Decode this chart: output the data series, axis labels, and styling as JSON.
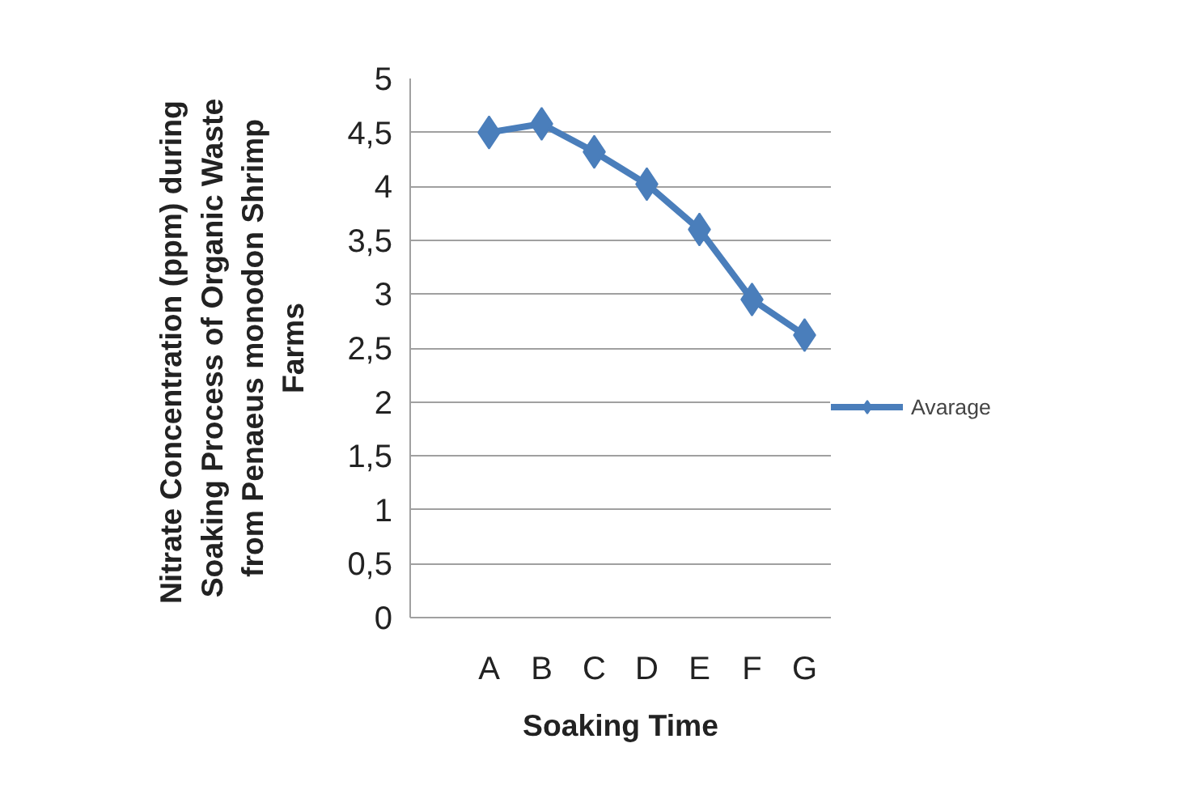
{
  "chart_data": {
    "type": "line",
    "xlabel": "Soaking Time",
    "ylabel": "Nitrate Concentration (ppm)  during\nSoaking Process of Organic Waste\nfrom Penaeus monodon Shrimp\nFarms",
    "categories": [
      null,
      "A",
      "B",
      "C",
      "D",
      "E",
      "F",
      "G"
    ],
    "series": [
      {
        "name": "Avarage",
        "color": "#4a7ebb",
        "values": [
          null,
          4.5,
          4.58,
          4.32,
          4.02,
          3.6,
          2.95,
          2.62
        ]
      }
    ],
    "ylim": [
      0,
      5
    ],
    "yticks": [
      0,
      {
        "value": 0.5,
        "label": "0,5"
      },
      1,
      {
        "value": 1.5,
        "label": "1,5"
      },
      2,
      {
        "value": 2.5,
        "label": "2,5"
      },
      3,
      {
        "value": 3.5,
        "label": "3,5"
      },
      4,
      {
        "value": 4.5,
        "label": "4,5"
      },
      5
    ],
    "grid": "y",
    "legend": "right",
    "marker": "diamond",
    "line_style": "solid"
  }
}
